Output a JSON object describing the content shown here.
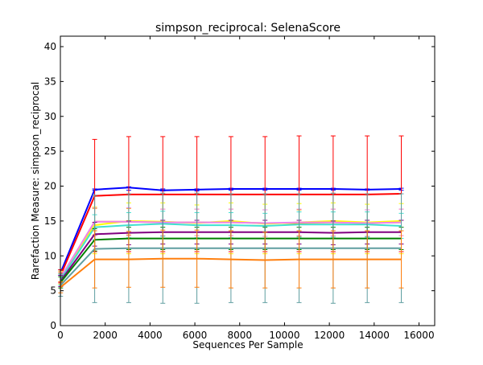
{
  "chart_data": {
    "type": "line",
    "title": "simpson_reciprocal: SelenaScore",
    "xlabel": "Sequences Per Sample",
    "ylabel": "Rarefaction Measure: simpson_reciprocal",
    "xlim": [
      0,
      16700
    ],
    "ylim": [
      0,
      41.5
    ],
    "xticks": [
      0,
      2000,
      4000,
      6000,
      8000,
      10000,
      12000,
      14000,
      16000
    ],
    "yticks": [
      0,
      5,
      10,
      15,
      20,
      25,
      30,
      35,
      40
    ],
    "grid": false,
    "legend": "none",
    "x": [
      10,
      1530,
      3050,
      4570,
      6090,
      7610,
      9130,
      10650,
      12170,
      13690,
      15210
    ],
    "series": [
      {
        "color": "#0000ff",
        "values": [
          7.6,
          19.5,
          19.8,
          19.4,
          19.5,
          19.6,
          19.6,
          19.6,
          19.6,
          19.5,
          19.6
        ],
        "err_low": [
          7.2,
          19.4,
          19.4,
          19.3,
          19.3,
          19.4,
          19.4,
          19.4,
          19.4,
          19.4,
          19.4
        ],
        "err_high": [
          8.0,
          19.6,
          19.9,
          19.6,
          19.6,
          19.7,
          19.7,
          19.7,
          19.7,
          19.6,
          19.7
        ]
      },
      {
        "color": "#ff0000",
        "values": [
          7.2,
          18.6,
          18.8,
          18.8,
          18.8,
          18.8,
          18.8,
          18.8,
          18.8,
          18.8,
          18.9
        ],
        "err_low": [
          6.2,
          10.6,
          10.6,
          10.6,
          10.6,
          10.6,
          10.6,
          10.6,
          10.6,
          10.6,
          10.6
        ],
        "err_high": [
          8.0,
          26.7,
          27.1,
          27.1,
          27.1,
          27.1,
          27.1,
          27.2,
          27.2,
          27.2,
          27.2
        ]
      },
      {
        "color": "#ffa500",
        "values": [
          6.8,
          14.9,
          14.9,
          14.8,
          14.8,
          14.8,
          14.7,
          14.7,
          14.8,
          14.7,
          14.8
        ],
        "err_low": [
          6.0,
          13.0,
          13.0,
          12.9,
          12.9,
          12.9,
          12.8,
          12.8,
          12.9,
          12.8,
          12.9
        ],
        "err_high": [
          7.6,
          16.8,
          16.8,
          16.7,
          16.7,
          16.7,
          16.6,
          16.6,
          16.7,
          16.6,
          16.7
        ]
      },
      {
        "color": "#ffff00",
        "values": [
          6.9,
          14.4,
          15.0,
          14.9,
          14.7,
          15.0,
          14.6,
          14.8,
          15.0,
          14.8,
          15.0
        ],
        "err_low": [
          6.0,
          10.3,
          10.3,
          10.3,
          10.3,
          10.3,
          10.3,
          10.3,
          10.3,
          10.3,
          10.3
        ],
        "err_high": [
          7.8,
          17.0,
          17.6,
          17.6,
          17.3,
          17.6,
          17.4,
          17.5,
          17.6,
          17.4,
          17.5
        ]
      },
      {
        "color": "#ee82ee",
        "values": [
          6.9,
          14.9,
          14.9,
          14.8,
          14.8,
          14.8,
          14.7,
          14.8,
          14.8,
          14.7,
          14.8
        ],
        "err_low": [
          6.1,
          12.9,
          12.9,
          12.9,
          12.9,
          12.9,
          12.8,
          12.9,
          12.9,
          12.8,
          12.9
        ],
        "err_high": [
          7.7,
          16.9,
          16.9,
          16.7,
          16.7,
          16.7,
          16.6,
          16.7,
          16.7,
          16.6,
          16.7
        ]
      },
      {
        "color": "#40e0d0",
        "values": [
          6.6,
          14.1,
          14.4,
          14.6,
          14.4,
          14.4,
          14.3,
          14.5,
          14.5,
          14.5,
          14.3
        ],
        "err_low": [
          5.8,
          12.3,
          12.6,
          12.8,
          12.6,
          12.6,
          12.5,
          12.7,
          12.7,
          12.7,
          12.5
        ],
        "err_high": [
          7.4,
          15.9,
          16.2,
          16.4,
          16.2,
          16.2,
          16.1,
          16.3,
          16.3,
          16.3,
          16.1
        ]
      },
      {
        "color": "#800080",
        "values": [
          6.4,
          13.1,
          13.3,
          13.4,
          13.4,
          13.4,
          13.4,
          13.4,
          13.3,
          13.4,
          13.4
        ],
        "err_low": [
          5.6,
          11.4,
          11.6,
          11.7,
          11.7,
          11.7,
          11.7,
          11.7,
          11.6,
          11.7,
          11.7
        ],
        "err_high": [
          7.2,
          14.8,
          15.0,
          15.1,
          15.1,
          15.1,
          15.1,
          15.1,
          15.0,
          15.1,
          15.1
        ]
      },
      {
        "color": "#008000",
        "values": [
          6.2,
          12.3,
          12.5,
          12.5,
          12.5,
          12.5,
          12.5,
          12.5,
          12.5,
          12.5,
          12.5
        ],
        "err_low": [
          5.4,
          10.7,
          10.9,
          10.9,
          10.9,
          10.9,
          10.9,
          10.9,
          10.9,
          10.9,
          10.9
        ],
        "err_high": [
          7.0,
          13.9,
          14.1,
          14.1,
          14.1,
          14.1,
          14.1,
          14.1,
          14.1,
          14.1,
          14.1
        ]
      },
      {
        "color": "#5f9ea0",
        "values": [
          5.8,
          11.0,
          11.1,
          11.1,
          11.1,
          11.1,
          11.1,
          11.1,
          11.1,
          11.1,
          11.1
        ],
        "err_low": [
          4.2,
          3.3,
          3.3,
          3.2,
          3.2,
          3.3,
          3.3,
          3.3,
          3.2,
          3.3,
          3.3
        ],
        "err_high": [
          7.4,
          18.7,
          18.9,
          19.0,
          19.0,
          18.9,
          18.9,
          18.9,
          19.0,
          18.9,
          18.9
        ]
      },
      {
        "color": "#ff7f0e",
        "values": [
          5.5,
          9.5,
          9.5,
          9.6,
          9.6,
          9.5,
          9.4,
          9.5,
          9.5,
          9.5,
          9.5
        ],
        "err_low": [
          4.7,
          5.4,
          5.5,
          5.5,
          5.5,
          5.4,
          5.4,
          5.4,
          5.4,
          5.4,
          5.4
        ],
        "err_high": [
          6.3,
          13.6,
          13.5,
          13.7,
          13.7,
          13.6,
          13.4,
          13.6,
          13.6,
          13.6,
          13.6
        ]
      }
    ]
  }
}
